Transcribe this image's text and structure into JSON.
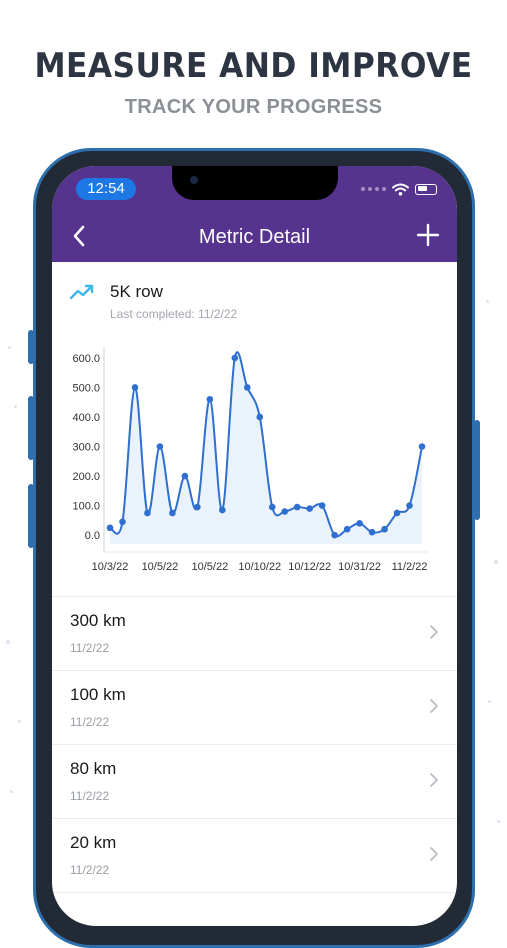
{
  "promo": {
    "headline": "MEASURE AND IMPROVE",
    "subhead": "TRACK YOUR PROGRESS"
  },
  "status_bar": {
    "time": "12:54"
  },
  "nav": {
    "title": "Metric Detail",
    "back_icon": "chevron-left-icon",
    "add_icon": "plus-icon"
  },
  "metric": {
    "name": "5K row",
    "last_completed": "Last completed: 11/2/22",
    "icon": "trending-up-icon"
  },
  "chart_data": {
    "type": "line",
    "ylim": [
      -30,
      620
    ],
    "yticks": [
      "600.0",
      "500.0",
      "400.0",
      "300.0",
      "200.0",
      "100.0",
      "0.0"
    ],
    "ytick_values": [
      600,
      500,
      400,
      300,
      200,
      100,
      0
    ],
    "xtick_labels": [
      "10/3/22",
      "10/5/22",
      "10/5/22",
      "10/10/22",
      "10/12/22",
      "10/31/22",
      "11/2/22"
    ],
    "xtick_indices": [
      0,
      4,
      8,
      12,
      16,
      20,
      24
    ],
    "points": [
      25,
      45,
      500,
      75,
      300,
      75,
      200,
      95,
      460,
      85,
      600,
      500,
      400,
      95,
      80,
      95,
      90,
      100,
      0,
      20,
      40,
      10,
      20,
      75,
      100,
      300
    ],
    "line_color": "#2f6fd0",
    "fill_color": "#d9e8f8"
  },
  "entries": [
    {
      "value": "300 km",
      "date": "11/2/22"
    },
    {
      "value": "100 km",
      "date": "11/2/22"
    },
    {
      "value": "80 km",
      "date": "11/2/22"
    },
    {
      "value": "20 km",
      "date": "11/2/22"
    }
  ],
  "colors": {
    "app_bar": "#55338f",
    "time_pill": "#1d78e6",
    "phone_frame": "#2d6fae",
    "trend_icon": "#3bb7e8"
  }
}
